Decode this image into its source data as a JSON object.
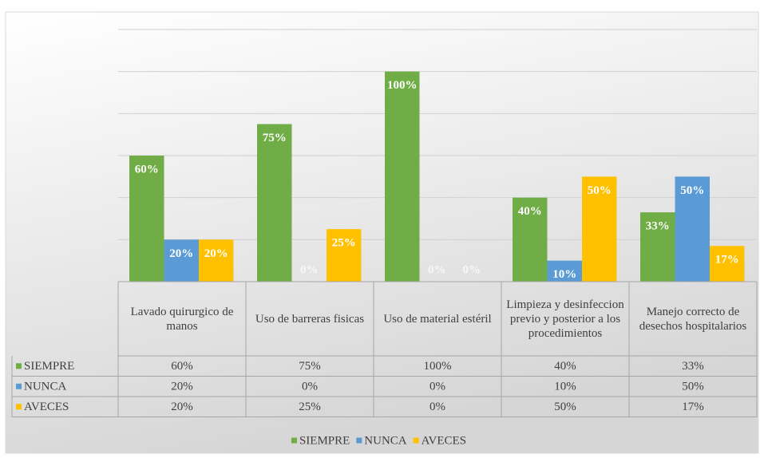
{
  "chart_data": {
    "type": "bar",
    "categories": [
      "Lavado quirurgico de manos",
      "Uso de barreras fisicas",
      "Uso de material estéril",
      "Limpieza y desinfeccion previo y posterior a los procedimientos",
      "Manejo correcto de desechos hospitalarios"
    ],
    "series": [
      {
        "name": "SIEMPRE",
        "color": "#70ad47",
        "values": [
          60,
          75,
          100,
          40,
          33
        ],
        "value_labels": [
          "60%",
          "75%",
          "100%",
          "40%",
          "33%"
        ]
      },
      {
        "name": "NUNCA",
        "color": "#5b9bd5",
        "values": [
          20,
          0,
          0,
          10,
          50
        ],
        "value_labels": [
          "20%",
          "0%",
          "0%",
          "10%",
          "50%"
        ]
      },
      {
        "name": "AVECES",
        "color": "#ffc000",
        "values": [
          20,
          25,
          0,
          50,
          17
        ],
        "value_labels": [
          "20%",
          "25%",
          "0%",
          "50%",
          "17%"
        ]
      }
    ],
    "ylim": [
      0,
      120
    ],
    "yticks": [
      0,
      20,
      40,
      60,
      80,
      100,
      120
    ],
    "grid": true,
    "legend": "bottom",
    "data_table": true
  }
}
